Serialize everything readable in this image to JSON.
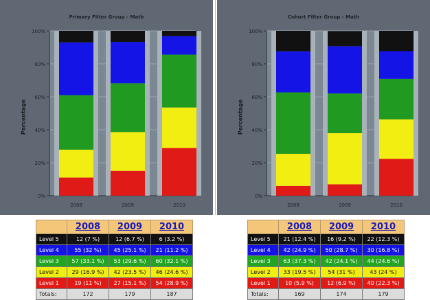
{
  "colors": {
    "Level 5": "#111111",
    "Level 4": "#1414e6",
    "Level 3": "#209a20",
    "Level 2": "#f2ee12",
    "Level 1": "#e01a16"
  },
  "chart_data": [
    {
      "type": "bar",
      "stacked": true,
      "title": "Primary Filter Group - Math",
      "ylabel": "Percentage",
      "ylim": [
        0,
        100
      ],
      "yticks": [
        "0%",
        "20%",
        "40%",
        "60%",
        "80%",
        "100%"
      ],
      "categories": [
        "2008",
        "2009",
        "2010"
      ],
      "series": [
        {
          "name": "Level 1",
          "values": [
            11,
            15.1,
            28.9
          ]
        },
        {
          "name": "Level 2",
          "values": [
            16.9,
            23.5,
            24.6
          ]
        },
        {
          "name": "Level 3",
          "values": [
            33.1,
            29.6,
            32.1
          ]
        },
        {
          "name": "Level 4",
          "values": [
            32,
            25.1,
            11.2
          ]
        },
        {
          "name": "Level 5",
          "values": [
            7,
            6.7,
            3.2
          ]
        }
      ]
    },
    {
      "type": "bar",
      "stacked": true,
      "title": "Cohort Filter Group - Math",
      "ylabel": "Percentage",
      "ylim": [
        0,
        100
      ],
      "yticks": [
        "0%",
        "20%",
        "40%",
        "60%",
        "80%",
        "100%"
      ],
      "categories": [
        "2008",
        "2009",
        "2010"
      ],
      "series": [
        {
          "name": "Level 1",
          "values": [
            5.9,
            6.9,
            22.3
          ]
        },
        {
          "name": "Level 2",
          "values": [
            19.5,
            31,
            24
          ]
        },
        {
          "name": "Level 3",
          "values": [
            37.3,
            24.1,
            24.6
          ]
        },
        {
          "name": "Level 4",
          "values": [
            24.9,
            28.7,
            16.8
          ]
        },
        {
          "name": "Level 5",
          "values": [
            12.4,
            9.2,
            12.3
          ]
        }
      ]
    }
  ],
  "tables": [
    {
      "headers": [
        "2008",
        "2009",
        "2010"
      ],
      "rows": [
        {
          "label": "Level 5",
          "cells": [
            "12 (7 %)",
            "12 (6.7 %)",
            "6 (3.2 %)"
          ]
        },
        {
          "label": "Level 4",
          "cells": [
            "55 (32 %)",
            "45 (25.1 %)",
            "21 (11.2 %)"
          ]
        },
        {
          "label": "Level 3",
          "cells": [
            "57 (33.1 %)",
            "53 (29.6 %)",
            "60 (32.1 %)"
          ]
        },
        {
          "label": "Level 2",
          "cells": [
            "29 (16.9 %)",
            "42 (23.5 %)",
            "46 (24.6 %)"
          ]
        },
        {
          "label": "Level 1",
          "cells": [
            "19 (11 %)",
            "27 (15.1 %)",
            "54 (28.9 %)"
          ]
        }
      ],
      "totals_label": "Totals:",
      "totals": [
        "172",
        "179",
        "187"
      ]
    },
    {
      "headers": [
        "2008",
        "2009",
        "2010"
      ],
      "rows": [
        {
          "label": "Level 5",
          "cells": [
            "21 (12.4 %)",
            "16 (9.2 %)",
            "22 (12.3 %)"
          ]
        },
        {
          "label": "Level 4",
          "cells": [
            "42 (24.9 %)",
            "50 (28.7 %)",
            "30 (16.8 %)"
          ]
        },
        {
          "label": "Level 3",
          "cells": [
            "63 (37.3 %)",
            "42 (24.1 %)",
            "44 (24.6 %)"
          ]
        },
        {
          "label": "Level 2",
          "cells": [
            "33 (19.5 %)",
            "54 (31 %)",
            "43 (24 %)"
          ]
        },
        {
          "label": "Level 1",
          "cells": [
            "10 (5.9 %)",
            "12 (6.9 %)",
            "40 (22.3 %)"
          ]
        }
      ],
      "totals_label": "Totals:",
      "totals": [
        "169",
        "174",
        "179"
      ]
    }
  ]
}
